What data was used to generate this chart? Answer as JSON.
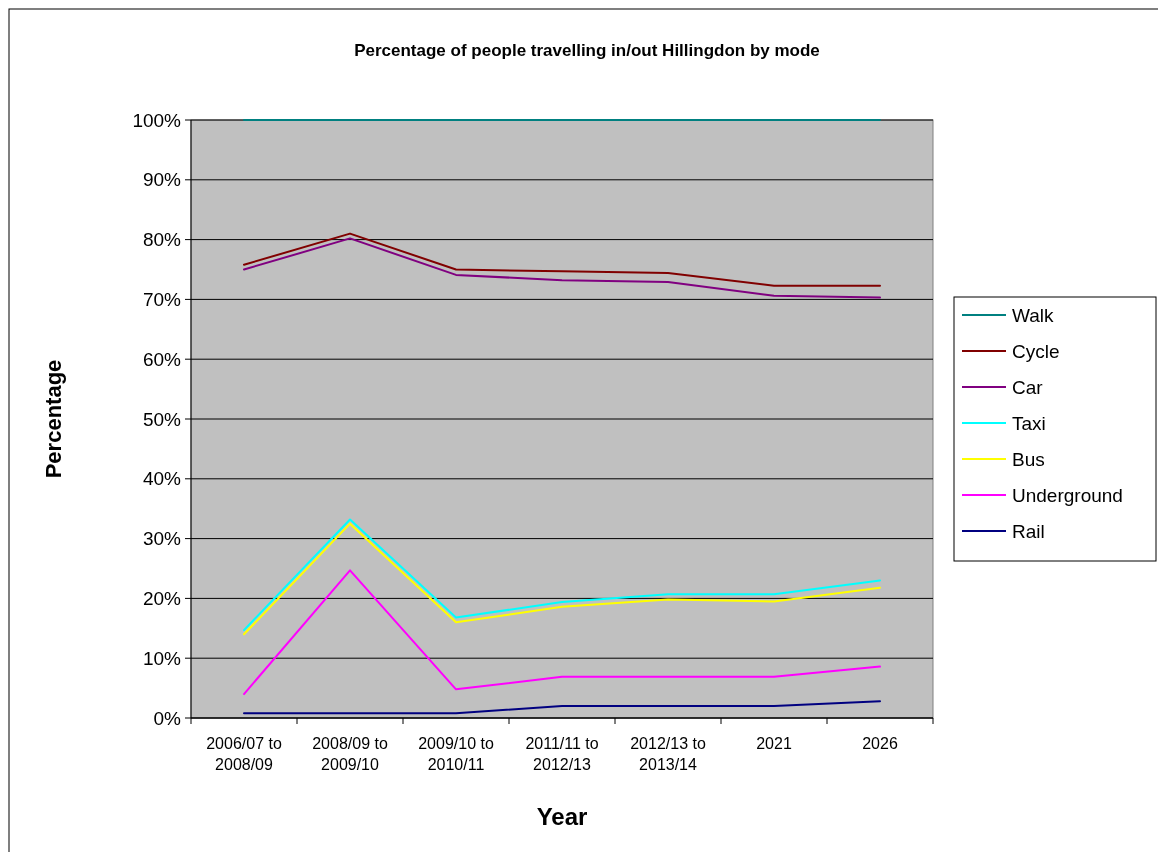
{
  "chart_data": {
    "type": "line",
    "title": "Percentage of people travelling in/out Hillingdon by mode",
    "xlabel": "Year",
    "ylabel": "Percentage",
    "categories": [
      "2006/07 to 2008/09",
      "2008/09 to 2009/10",
      "2009/10 to 2010/11",
      "2011/11 to 2012/13",
      "2012/13 to 2013/14",
      "2021",
      "2026"
    ],
    "series": [
      {
        "name": "Walk",
        "color": "#008080",
        "values": [
          100,
          100,
          100,
          100,
          100,
          100,
          100
        ]
      },
      {
        "name": "Cycle",
        "color": "#800000",
        "values": [
          75.8,
          81,
          75,
          74.7,
          74.4,
          72.3,
          72.3
        ]
      },
      {
        "name": "Car",
        "color": "#800080",
        "values": [
          75,
          80.2,
          74.1,
          73.2,
          72.9,
          70.6,
          70.3
        ]
      },
      {
        "name": "Taxi",
        "color": "#00ffff",
        "values": [
          14.7,
          33.2,
          16.8,
          19.4,
          20.7,
          20.7,
          23
        ]
      },
      {
        "name": "Bus",
        "color": "#ffff00",
        "values": [
          14,
          32.5,
          16,
          18.6,
          19.8,
          19.5,
          21.8
        ]
      },
      {
        "name": "Underground",
        "color": "#ff00ff",
        "values": [
          4,
          24.7,
          4.8,
          6.9,
          6.9,
          6.9,
          8.6
        ]
      },
      {
        "name": "Rail",
        "color": "#000080",
        "values": [
          0.8,
          0.8,
          0.8,
          2,
          2,
          2,
          2.8
        ]
      }
    ],
    "ylim": [
      0,
      100
    ],
    "yticks": [
      {
        "value": 0,
        "label": "0%"
      },
      {
        "value": 10,
        "label": "10%"
      },
      {
        "value": 20,
        "label": "20%"
      },
      {
        "value": 30,
        "label": "30%"
      },
      {
        "value": 40,
        "label": "40%"
      },
      {
        "value": 50,
        "label": "50%"
      },
      {
        "value": 60,
        "label": "60%"
      },
      {
        "value": 70,
        "label": "70%"
      },
      {
        "value": 80,
        "label": "80%"
      },
      {
        "value": 90,
        "label": "90%"
      },
      {
        "value": 100,
        "label": "100%"
      }
    ],
    "grid": "y",
    "legend": "right",
    "marker": "none",
    "line_style": "solid"
  }
}
